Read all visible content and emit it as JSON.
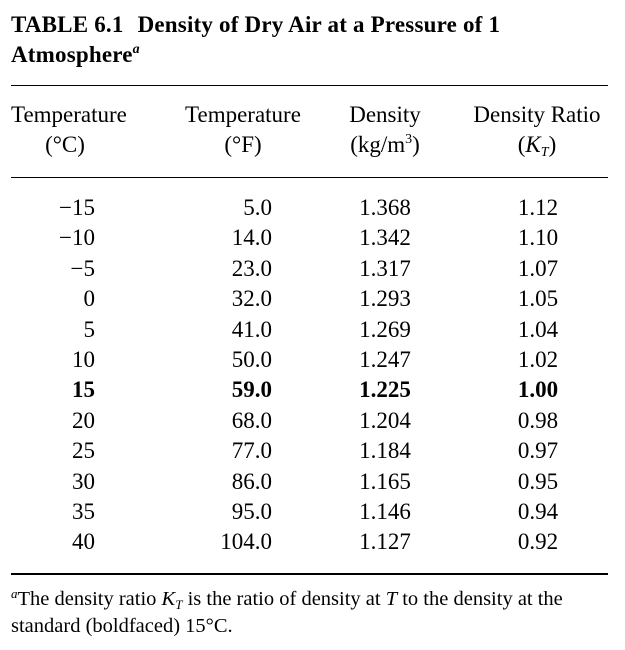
{
  "table": {
    "label": "TABLE 6.1",
    "title": "Density of Dry Air at a Pressure of 1 Atmosphere",
    "title_footnote_mark": "a",
    "headers": {
      "temp_c": {
        "line1": "Temperature",
        "line2": "(°C)"
      },
      "temp_f": {
        "line1": "Temperature",
        "line2": "(°F)"
      },
      "density": {
        "line1": "Density",
        "line2_prefix": "(kg/m",
        "line2_sup": "3",
        "line2_suffix": ")"
      },
      "ratio": {
        "line1": "Density Ratio",
        "line2_prefix": "(",
        "symbol": "K",
        "symbol_sub": "T",
        "line2_suffix": ")"
      }
    },
    "rows": [
      {
        "temp_c": "−15",
        "temp_f": "5.0",
        "density": "1.368",
        "ratio": "1.12",
        "bold": false
      },
      {
        "temp_c": "−10",
        "temp_f": "14.0",
        "density": "1.342",
        "ratio": "1.10",
        "bold": false
      },
      {
        "temp_c": "−5",
        "temp_f": "23.0",
        "density": "1.317",
        "ratio": "1.07",
        "bold": false
      },
      {
        "temp_c": "0",
        "temp_f": "32.0",
        "density": "1.293",
        "ratio": "1.05",
        "bold": false
      },
      {
        "temp_c": "5",
        "temp_f": "41.0",
        "density": "1.269",
        "ratio": "1.04",
        "bold": false
      },
      {
        "temp_c": "10",
        "temp_f": "50.0",
        "density": "1.247",
        "ratio": "1.02",
        "bold": false
      },
      {
        "temp_c": "15",
        "temp_f": "59.0",
        "density": "1.225",
        "ratio": "1.00",
        "bold": true
      },
      {
        "temp_c": "20",
        "temp_f": "68.0",
        "density": "1.204",
        "ratio": "0.98",
        "bold": false
      },
      {
        "temp_c": "25",
        "temp_f": "77.0",
        "density": "1.184",
        "ratio": "0.97",
        "bold": false
      },
      {
        "temp_c": "30",
        "temp_f": "86.0",
        "density": "1.165",
        "ratio": "0.95",
        "bold": false
      },
      {
        "temp_c": "35",
        "temp_f": "95.0",
        "density": "1.146",
        "ratio": "0.94",
        "bold": false
      },
      {
        "temp_c": "40",
        "temp_f": "104.0",
        "density": "1.127",
        "ratio": "0.92",
        "bold": false
      }
    ],
    "footnote": {
      "mark": "a",
      "part1": "The density ratio ",
      "symbol": "K",
      "symbol_sub": "T",
      "part2": " is the ratio of density at ",
      "var_t": "T",
      "part3": " to the density at the standard (boldfaced) 15°C."
    }
  }
}
